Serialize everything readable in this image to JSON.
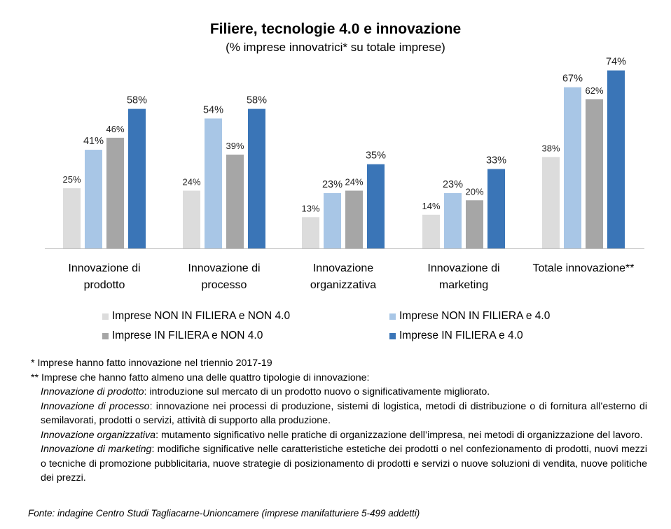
{
  "chart_data": {
    "type": "bar",
    "title": "Filiere, tecnologie 4.0 e innovazione",
    "subtitle": "(% imprese innovatrici* su totale imprese)",
    "categories": [
      [
        "Innovazione di",
        "prodotto"
      ],
      [
        "Innovazione di",
        "processo"
      ],
      [
        "Innovazione",
        "organizzativa"
      ],
      [
        "Innovazione di",
        "marketing"
      ],
      [
        "Totale innovazione**"
      ]
    ],
    "series": [
      {
        "name": "Imprese NON IN FILIERA e NON 4.0",
        "color": "#dcdcdc",
        "values": [
          25,
          24,
          13,
          14,
          38
        ]
      },
      {
        "name": "Imprese NON IN FILIERA e 4.0",
        "color": "#a8c6e6",
        "values": [
          41,
          54,
          23,
          23,
          67
        ]
      },
      {
        "name": "Imprese IN FILIERA e NON 4.0",
        "color": "#a6a6a6",
        "values": [
          46,
          39,
          24,
          20,
          62
        ]
      },
      {
        "name": "Imprese IN FILIERA e 4.0",
        "color": "#3a75b7",
        "values": [
          58,
          58,
          35,
          33,
          74
        ]
      }
    ],
    "value_suffix": "%",
    "ylim": [
      0,
      80
    ],
    "grid": false,
    "legend_position": "bottom"
  },
  "notes": {
    "note1": "* Imprese hanno fatto innovazione nel triennio 2017-19",
    "note2": "** Imprese che hanno fatto almeno una delle quattro tipologie di innovazione:",
    "definitions": [
      {
        "term": "Innovazione di prodotto",
        "text": ": introduzione sul mercato di un prodotto nuovo o significativamente migliorato."
      },
      {
        "term": "Innovazione di processo",
        "text": ": innovazione nei processi di produzione, sistemi di logistica, metodi di distribuzione o di fornitura all’esterno di semilavorati, prodotti o servizi, attività di supporto alla produzione."
      },
      {
        "term": "Innovazione organizzativa",
        "text": ": mutamento significativo nelle pratiche di organizzazione dell’impresa, nei metodi di organizzazione del lavoro."
      },
      {
        "term": "Innovazione di marketing",
        "text": ": modifiche significative nelle caratteristiche estetiche dei prodotti o nel confezionamento di prodotti, nuovi mezzi o tecniche di promozione pubblicitaria, nuove strategie di posizionamento di prodotti e servizi o nuove soluzioni di vendita, nuove politiche dei prezzi."
      }
    ],
    "source": "Fonte: indagine Centro Studi Tagliacarne-Unioncamere (imprese manifatturiere 5-499 addetti)"
  }
}
